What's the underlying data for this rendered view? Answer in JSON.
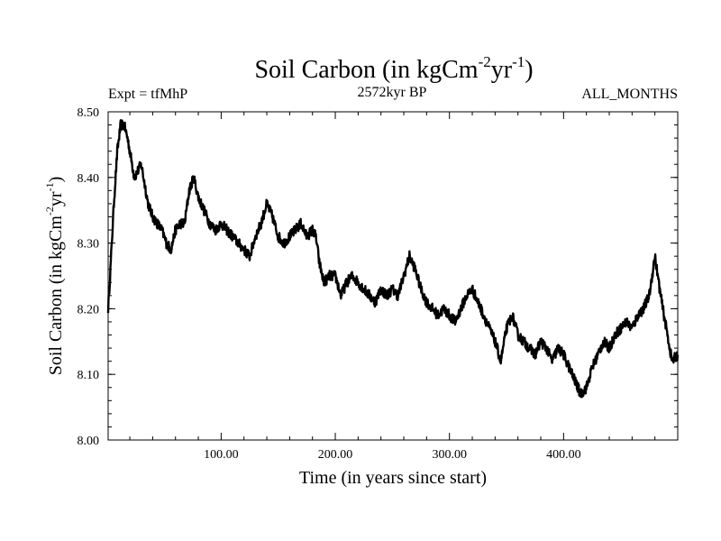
{
  "chart_data": {
    "type": "line",
    "title_main": "Soil Carbon (in kgCm",
    "title_sup1": "-2",
    "title_mid": "yr",
    "title_sup2": "-1",
    "title_end": ")",
    "subtitle_left": "Expt = tfMhP",
    "subtitle_center": "2572kyr BP",
    "subtitle_right": "ALL_MONTHS",
    "xlabel": "Time (in years since start)",
    "ylabel_main": "Soil Carbon (in kgCm",
    "ylabel_sup1": "-2",
    "ylabel_mid": "yr",
    "ylabel_sup2": "-1",
    "ylabel_end": ")",
    "xlim": [
      1,
      500
    ],
    "ylim": [
      8.0,
      8.5
    ],
    "x_ticks": [
      {
        "value": 100,
        "label": "100.00"
      },
      {
        "value": 200,
        "label": "200.00"
      },
      {
        "value": 300,
        "label": "300.00"
      },
      {
        "value": 400,
        "label": "400.00"
      }
    ],
    "y_ticks": [
      {
        "value": 8.0,
        "label": "8.00"
      },
      {
        "value": 8.1,
        "label": "8.10"
      },
      {
        "value": 8.2,
        "label": "8.20"
      },
      {
        "value": 8.3,
        "label": "8.30"
      },
      {
        "value": 8.4,
        "label": "8.40"
      },
      {
        "value": 8.5,
        "label": "8.50"
      }
    ],
    "noise_amplitude": 0.008,
    "series": [
      {
        "name": "Soil Carbon",
        "color": "#000000",
        "x": [
          1,
          3,
          6,
          9,
          12,
          15,
          18,
          21,
          24,
          27,
          30,
          33,
          36,
          40,
          44,
          48,
          52,
          56,
          60,
          64,
          68,
          72,
          76,
          80,
          85,
          90,
          95,
          100,
          105,
          110,
          115,
          120,
          125,
          130,
          135,
          140,
          145,
          150,
          155,
          160,
          165,
          170,
          175,
          180,
          183,
          186,
          190,
          195,
          200,
          205,
          210,
          215,
          220,
          225,
          230,
          235,
          240,
          245,
          250,
          255,
          260,
          265,
          270,
          275,
          280,
          285,
          290,
          295,
          300,
          305,
          310,
          315,
          320,
          325,
          330,
          335,
          340,
          345,
          350,
          355,
          360,
          365,
          370,
          375,
          380,
          385,
          390,
          395,
          400,
          405,
          410,
          415,
          420,
          425,
          430,
          435,
          440,
          445,
          450,
          455,
          460,
          465,
          470,
          475,
          480,
          485,
          490,
          495,
          500
        ],
        "values": [
          8.2,
          8.26,
          8.36,
          8.44,
          8.48,
          8.48,
          8.46,
          8.43,
          8.4,
          8.41,
          8.42,
          8.39,
          8.36,
          8.34,
          8.33,
          8.32,
          8.3,
          8.29,
          8.32,
          8.33,
          8.33,
          8.38,
          8.4,
          8.37,
          8.35,
          8.33,
          8.32,
          8.33,
          8.32,
          8.31,
          8.3,
          8.29,
          8.28,
          8.31,
          8.33,
          8.36,
          8.34,
          8.31,
          8.3,
          8.31,
          8.32,
          8.33,
          8.31,
          8.32,
          8.31,
          8.27,
          8.24,
          8.25,
          8.25,
          8.22,
          8.24,
          8.25,
          8.24,
          8.23,
          8.22,
          8.21,
          8.23,
          8.22,
          8.23,
          8.22,
          8.25,
          8.28,
          8.26,
          8.23,
          8.21,
          8.2,
          8.19,
          8.2,
          8.19,
          8.18,
          8.2,
          8.22,
          8.23,
          8.21,
          8.19,
          8.17,
          8.15,
          8.12,
          8.17,
          8.19,
          8.16,
          8.15,
          8.14,
          8.13,
          8.15,
          8.14,
          8.12,
          8.14,
          8.13,
          8.11,
          8.09,
          8.07,
          8.08,
          8.11,
          8.13,
          8.15,
          8.14,
          8.16,
          8.17,
          8.18,
          8.17,
          8.19,
          8.2,
          8.22,
          8.28,
          8.22,
          8.17,
          8.12,
          8.13
        ]
      }
    ]
  }
}
